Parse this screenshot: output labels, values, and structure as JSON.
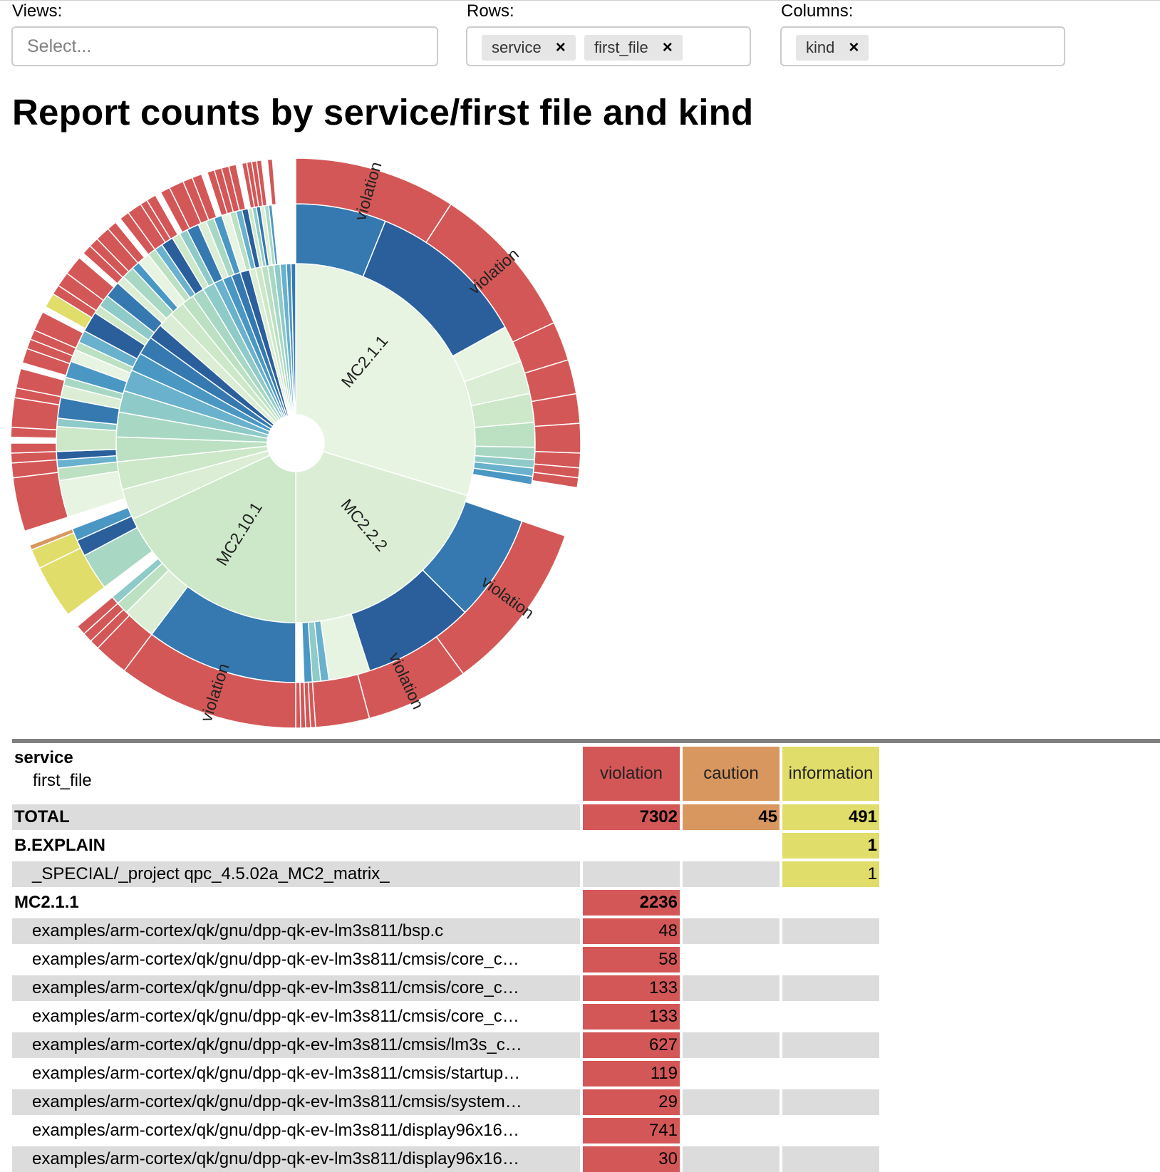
{
  "controls": {
    "views": {
      "label": "Views:",
      "placeholder": "Select..."
    },
    "rows": {
      "label": "Rows:",
      "chips": [
        {
          "label": "service"
        },
        {
          "label": "first_file"
        }
      ]
    },
    "columns": {
      "label": "Columns:",
      "chips": [
        {
          "label": "kind"
        }
      ]
    },
    "chip_remove_glyph": "×"
  },
  "title": "Report counts by service/first file and kind",
  "chart_data": {
    "type": "sunburst",
    "levels": [
      "service",
      "first_file",
      "kind"
    ],
    "inner_labels": [
      "MC2.1.1",
      "MC2.2.2",
      "MC2.10.1"
    ],
    "outer_labels": [
      "violation",
      "violation",
      "violation",
      "violation",
      "violation"
    ],
    "colors": {
      "violation": "#d45757",
      "caution": "#d8975f",
      "information": "#e0dd6a"
    }
  },
  "table": {
    "row_headers": [
      "service",
      "first_file"
    ],
    "columns": [
      {
        "label": "violation",
        "color": "#d45757"
      },
      {
        "label": "caution",
        "color": "#d8975f"
      },
      {
        "label": "information",
        "color": "#e0dd6a"
      }
    ],
    "rows": [
      {
        "label": "TOTAL",
        "level": 0,
        "bold": true,
        "shade": true,
        "values": [
          "7302",
          "45",
          "491"
        ]
      },
      {
        "label": "B.EXPLAIN",
        "level": 0,
        "bold": true,
        "shade": false,
        "values": [
          "",
          "",
          "1"
        ]
      },
      {
        "label": "_SPECIAL/_project qpc_4.5.02a_MC2_matrix_",
        "level": 1,
        "bold": false,
        "shade": true,
        "values": [
          "",
          "",
          "1"
        ]
      },
      {
        "label": "MC2.1.1",
        "level": 0,
        "bold": true,
        "shade": false,
        "values": [
          "2236",
          "",
          ""
        ]
      },
      {
        "label": "examples/arm-cortex/qk/gnu/dpp-qk-ev-lm3s811/bsp.c",
        "level": 1,
        "bold": false,
        "shade": true,
        "values": [
          "48",
          "",
          ""
        ]
      },
      {
        "label": "examples/arm-cortex/qk/gnu/dpp-qk-ev-lm3s811/cmsis/core_c…",
        "level": 1,
        "bold": false,
        "shade": false,
        "values": [
          "58",
          "",
          ""
        ]
      },
      {
        "label": "examples/arm-cortex/qk/gnu/dpp-qk-ev-lm3s811/cmsis/core_c…",
        "level": 1,
        "bold": false,
        "shade": true,
        "values": [
          "133",
          "",
          ""
        ]
      },
      {
        "label": "examples/arm-cortex/qk/gnu/dpp-qk-ev-lm3s811/cmsis/core_c…",
        "level": 1,
        "bold": false,
        "shade": false,
        "values": [
          "133",
          "",
          ""
        ]
      },
      {
        "label": "examples/arm-cortex/qk/gnu/dpp-qk-ev-lm3s811/cmsis/lm3s_c…",
        "level": 1,
        "bold": false,
        "shade": true,
        "values": [
          "627",
          "",
          ""
        ]
      },
      {
        "label": "examples/arm-cortex/qk/gnu/dpp-qk-ev-lm3s811/cmsis/startup…",
        "level": 1,
        "bold": false,
        "shade": false,
        "values": [
          "119",
          "",
          ""
        ]
      },
      {
        "label": "examples/arm-cortex/qk/gnu/dpp-qk-ev-lm3s811/cmsis/system…",
        "level": 1,
        "bold": false,
        "shade": true,
        "values": [
          "29",
          "",
          ""
        ]
      },
      {
        "label": "examples/arm-cortex/qk/gnu/dpp-qk-ev-lm3s811/display96x16…",
        "level": 1,
        "bold": false,
        "shade": false,
        "values": [
          "741",
          "",
          ""
        ]
      },
      {
        "label": "examples/arm-cortex/qk/gnu/dpp-qk-ev-lm3s811/display96x16…",
        "level": 1,
        "bold": false,
        "shade": true,
        "values": [
          "30",
          "",
          ""
        ]
      }
    ]
  }
}
